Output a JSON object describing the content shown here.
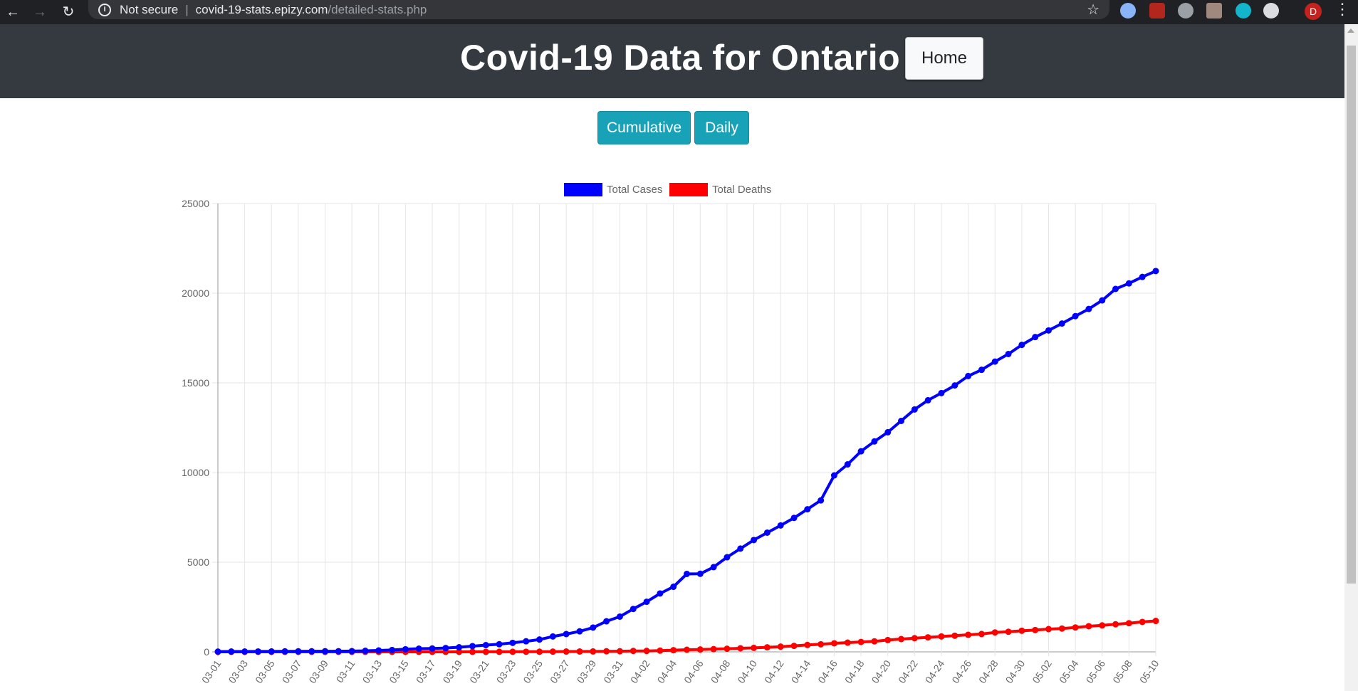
{
  "browser": {
    "not_secure": "Not secure",
    "url_host": "covid-19-stats.epizy.com",
    "url_path": "/detailed-stats.php",
    "profile_initial": "D"
  },
  "header": {
    "title": "Covid-19 Data for Ontario",
    "home_label": "Home",
    "background": "#343a40"
  },
  "toggles": {
    "cumulative_label": "Cumulative",
    "daily_label": "Daily",
    "color": "#17a2b8"
  },
  "chart_data": {
    "type": "line",
    "title": "",
    "xlabel": "",
    "ylabel": "",
    "ylim": [
      0,
      25000
    ],
    "yticks": [
      0,
      5000,
      10000,
      15000,
      20000,
      25000
    ],
    "grid": true,
    "legend_position": "top",
    "x": [
      "03-01",
      "03-02",
      "03-03",
      "03-04",
      "03-05",
      "03-06",
      "03-07",
      "03-08",
      "03-09",
      "03-10",
      "03-11",
      "03-12",
      "03-13",
      "03-14",
      "03-15",
      "03-16",
      "03-17",
      "03-18",
      "03-19",
      "03-20",
      "03-21",
      "03-22",
      "03-23",
      "03-24",
      "03-25",
      "03-26",
      "03-27",
      "03-28",
      "03-29",
      "03-30",
      "03-31",
      "04-01",
      "04-02",
      "04-03",
      "04-04",
      "04-05",
      "04-06",
      "04-07",
      "04-08",
      "04-09",
      "04-10",
      "04-11",
      "04-12",
      "04-13",
      "04-14",
      "04-15",
      "04-16",
      "04-17",
      "04-18",
      "04-19",
      "04-20",
      "04-21",
      "04-22",
      "04-23",
      "04-24",
      "04-25",
      "04-26",
      "04-27",
      "04-28",
      "04-29",
      "04-30",
      "05-01",
      "05-02",
      "05-03",
      "05-04",
      "05-05",
      "05-06",
      "05-07",
      "05-08",
      "05-09",
      "05-10"
    ],
    "x_tick_labels": [
      "03-01",
      "03-03",
      "03-05",
      "03-07",
      "03-09",
      "03-11",
      "03-13",
      "03-15",
      "03-17",
      "03-19",
      "03-21",
      "03-23",
      "03-25",
      "03-27",
      "03-29",
      "03-31",
      "04-02",
      "04-04",
      "04-06",
      "04-08",
      "04-10",
      "04-12",
      "04-14",
      "04-16",
      "04-18",
      "04-20",
      "04-22",
      "04-24",
      "04-26",
      "04-28",
      "04-30",
      "05-02",
      "05-04",
      "05-06",
      "05-08",
      "05-10"
    ],
    "series": [
      {
        "name": "Total Cases",
        "color": "#0000ff",
        "values": [
          15,
          18,
          20,
          22,
          25,
          28,
          32,
          34,
          36,
          37,
          42,
          59,
          79,
          103,
          145,
          177,
          189,
          214,
          257,
          318,
          377,
          425,
          503,
          588,
          688,
          858,
          993,
          1144,
          1355,
          1706,
          1966,
          2392,
          2793,
          3255,
          3630,
          4347,
          4354,
          4726,
          5276,
          5759,
          6237,
          6648,
          7049,
          7470,
          7953,
          8447,
          9840,
          10456,
          11184,
          11735,
          12245,
          12879,
          13519,
          14032,
          14432,
          14856,
          15381,
          15728,
          16187,
          16608,
          17119,
          17553,
          17923,
          18310,
          18722,
          19121,
          19598,
          20238,
          20546,
          20907,
          21236
        ]
      },
      {
        "name": "Total Deaths",
        "color": "#ff0000",
        "values": [
          0,
          0,
          0,
          0,
          0,
          0,
          0,
          0,
          0,
          0,
          0,
          0,
          0,
          0,
          0,
          0,
          1,
          1,
          1,
          2,
          2,
          3,
          5,
          7,
          8,
          13,
          18,
          21,
          23,
          33,
          37,
          50,
          53,
          67,
          94,
          119,
          132,
          153,
          174,
          200,
          222,
          253,
          291,
          334,
          385,
          423,
          478,
          514,
          553,
          586,
          659,
          713,
          763,
          811,
          859,
          900,
          951,
          996,
          1082,
          1121,
          1176,
          1216,
          1268,
          1300,
          1361,
          1429,
          1477,
          1540,
          1599,
          1669,
          1725
        ]
      }
    ]
  }
}
